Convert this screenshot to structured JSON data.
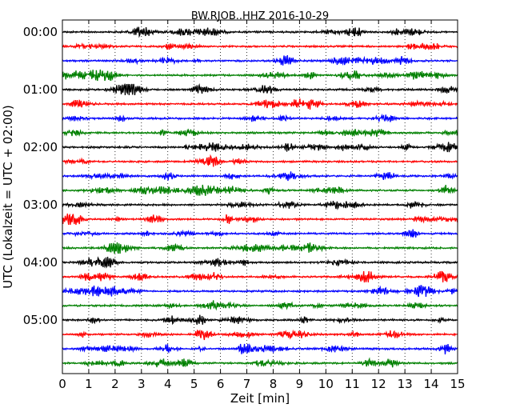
{
  "chart_data": {
    "type": "line",
    "title": "BW.RJOB..HHZ 2016-10-29",
    "xlabel": "Zeit  [min]",
    "ylabel": "UTC (Lokalzeit = UTC + 02:00)",
    "xlim": [
      0,
      15
    ],
    "x_ticks": [
      "0",
      "1",
      "2",
      "3",
      "4",
      "5",
      "6",
      "7",
      "8",
      "9",
      "10",
      "11",
      "12",
      "13",
      "14",
      "15"
    ],
    "y_tick_labels": [
      "00:00",
      "01:00",
      "02:00",
      "03:00",
      "04:00",
      "05:00"
    ],
    "grid": "vertical dotted",
    "rows_per_hour": 4,
    "row_colors": [
      "#000000",
      "#ff0000",
      "#0000ff",
      "#008000"
    ],
    "num_rows": 24
  }
}
